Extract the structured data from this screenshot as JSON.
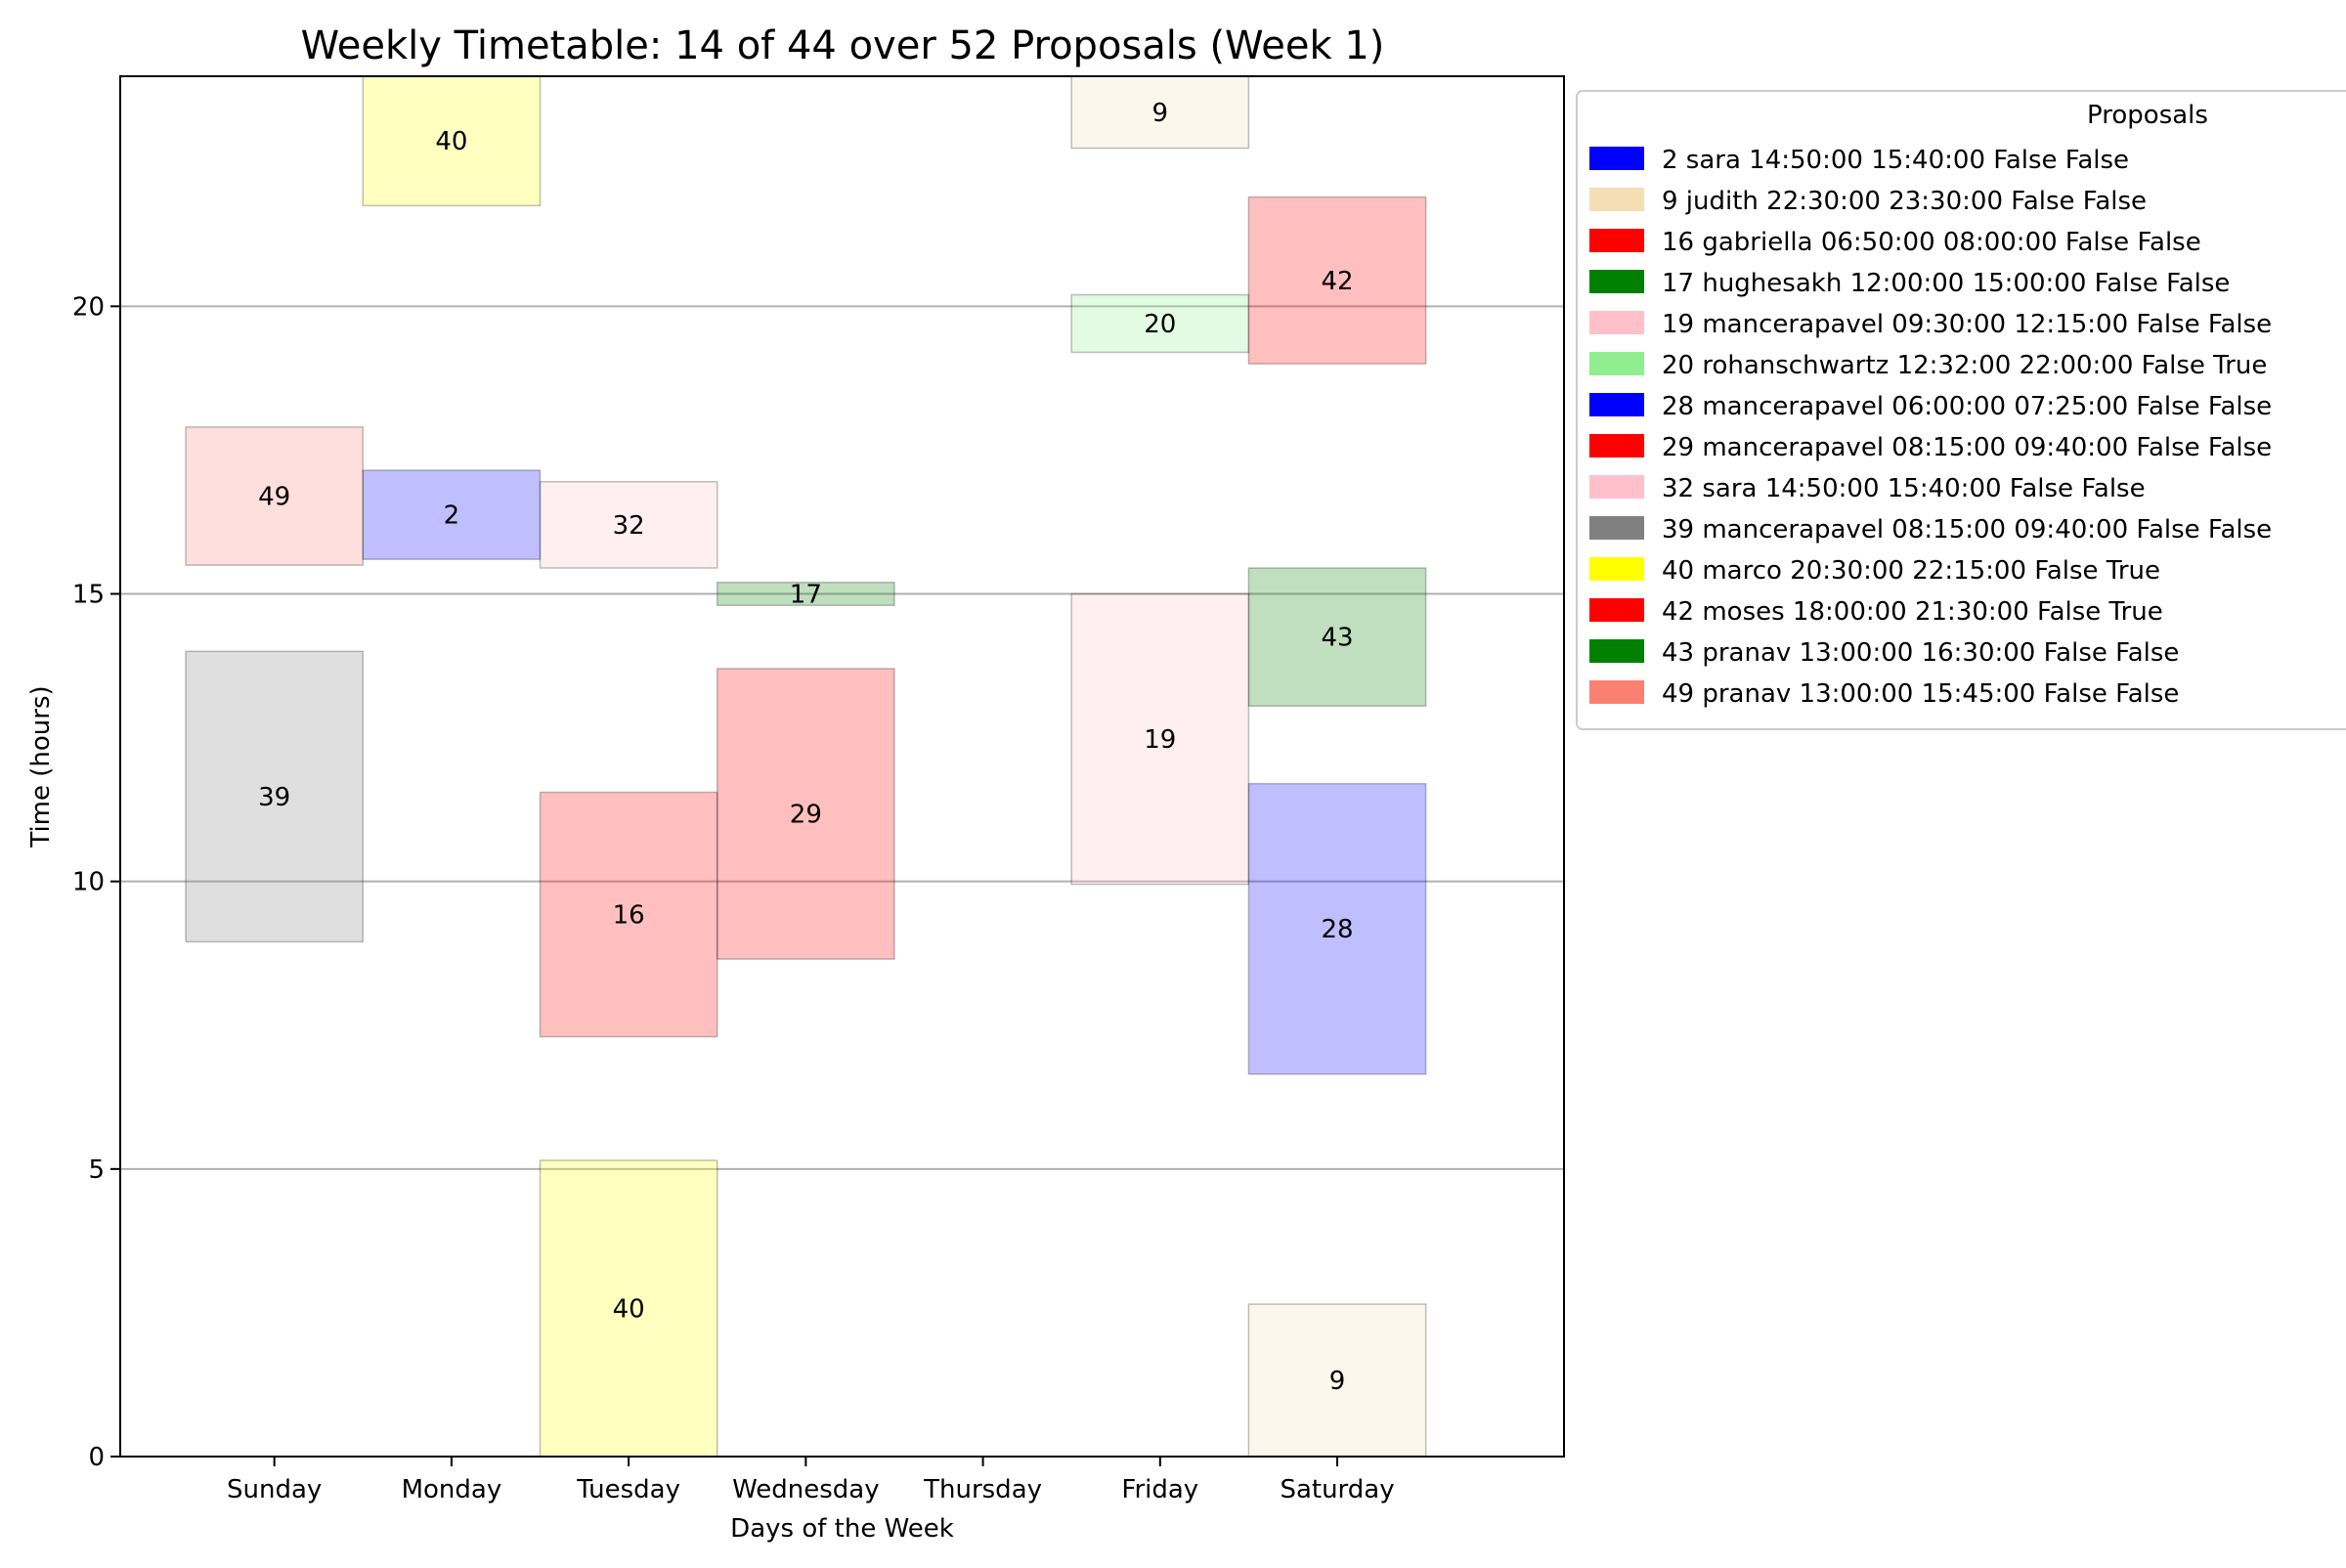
{
  "chart_data": {
    "type": "bar",
    "title": "Weekly Timetable: 14 of 44 over 52 Proposals (Week 1)",
    "xlabel": "Days of the Week",
    "ylabel": "Time (hours)",
    "categories": [
      "Sunday",
      "Monday",
      "Tuesday",
      "Wednesday",
      "Thursday",
      "Friday",
      "Saturday"
    ],
    "ylim": [
      0,
      24
    ],
    "yticks": [
      0,
      5,
      10,
      15,
      20
    ],
    "grid": "horizontal",
    "legend": {
      "title": "Proposals",
      "placement": "outside-right-top",
      "entries": [
        {
          "label": "2 sara 14:50:00 15:40:00 False False",
          "color": "#0000ff"
        },
        {
          "label": "9 judith 22:30:00 23:30:00 False False",
          "color": "#f5deb3"
        },
        {
          "label": "16 gabriella 06:50:00 08:00:00 False False",
          "color": "#ff0000"
        },
        {
          "label": "17 hughesakh 12:00:00 15:00:00 False False",
          "color": "#008000"
        },
        {
          "label": "19 mancerapavel 09:30:00 12:15:00 False False",
          "color": "#ffc0cb"
        },
        {
          "label": "20 rohanschwartz 12:32:00 22:00:00 False True",
          "color": "#90ee90"
        },
        {
          "label": "28 mancerapavel 06:00:00 07:25:00 False False",
          "color": "#0000ff"
        },
        {
          "label": "29 mancerapavel 08:15:00 09:40:00 False False",
          "color": "#ff0000"
        },
        {
          "label": "32 sara 14:50:00 15:40:00 False False",
          "color": "#ffc0cb"
        },
        {
          "label": "39 mancerapavel 08:15:00 09:40:00 False False",
          "color": "#808080"
        },
        {
          "label": "40 marco 20:30:00 22:15:00 False True",
          "color": "#ffff00"
        },
        {
          "label": "42 moses 18:00:00 21:30:00 False True",
          "color": "#ff0000"
        },
        {
          "label": "43 pranav 13:00:00 16:30:00 False False",
          "color": "#008000"
        },
        {
          "label": "49 pranav 13:00:00 15:45:00 False False",
          "color": "#fa8072"
        }
      ]
    },
    "blocks": [
      {
        "id": "40",
        "day": 1,
        "start": 21.75,
        "end": 24.0,
        "color": "#ffff00"
      },
      {
        "id": "9",
        "day": 5,
        "start": 22.75,
        "end": 24.0,
        "color": "#f5deb3"
      },
      {
        "id": "20",
        "day": 5,
        "start": 19.2,
        "end": 20.2,
        "color": "#90ee90"
      },
      {
        "id": "42",
        "day": 6,
        "start": 19.0,
        "end": 21.9,
        "color": "#ff0000"
      },
      {
        "id": "49",
        "day": 0,
        "start": 15.5,
        "end": 17.9,
        "color": "#fa8072"
      },
      {
        "id": "2",
        "day": 1,
        "start": 15.6,
        "end": 17.15,
        "color": "#0000ff"
      },
      {
        "id": "32",
        "day": 2,
        "start": 15.45,
        "end": 16.95,
        "color": "#ffc0cb"
      },
      {
        "id": "17",
        "day": 3,
        "start": 14.8,
        "end": 15.2,
        "color": "#008000"
      },
      {
        "id": "43",
        "day": 6,
        "start": 13.05,
        "end": 15.45,
        "color": "#008000"
      },
      {
        "id": "39",
        "day": 0,
        "start": 8.95,
        "end": 14.0,
        "color": "#808080"
      },
      {
        "id": "29",
        "day": 3,
        "start": 8.65,
        "end": 13.7,
        "color": "#ff0000"
      },
      {
        "id": "19",
        "day": 5,
        "start": 9.95,
        "end": 15.0,
        "color": "#ffc0cb"
      },
      {
        "id": "16",
        "day": 2,
        "start": 7.3,
        "end": 11.55,
        "color": "#ff0000"
      },
      {
        "id": "28",
        "day": 6,
        "start": 6.65,
        "end": 11.7,
        "color": "#0000ff"
      },
      {
        "id": "40",
        "day": 2,
        "start": 0.0,
        "end": 5.15,
        "color": "#ffff00"
      },
      {
        "id": "9",
        "day": 6,
        "start": 0.0,
        "end": 2.65,
        "color": "#f5deb3"
      }
    ],
    "block_alpha": 0.25
  }
}
